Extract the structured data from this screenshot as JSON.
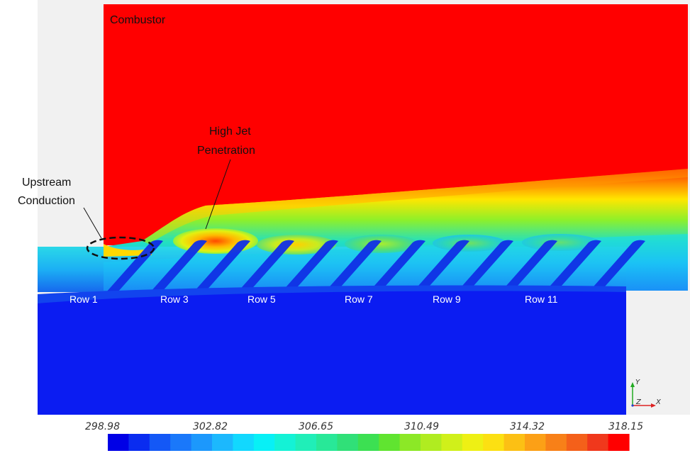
{
  "labels": {
    "combustor": "Combustor",
    "high_jet_line1": "High Jet",
    "high_jet_line2": "Penetration",
    "upstream_line1": "Upstream",
    "upstream_line2": "Conduction"
  },
  "rows": [
    "Row 1",
    "Row 3",
    "Row 5",
    "Row 7",
    "Row 9",
    "Row 11"
  ],
  "colorbar": {
    "ticks": [
      "298.98",
      "302.82",
      "306.65",
      "310.49",
      "314.32",
      "318.15"
    ],
    "colors": [
      "#0000e6",
      "#0a2cf0",
      "#1458f6",
      "#1a78fa",
      "#1c98fc",
      "#1cb8fd",
      "#12d8fe",
      "#08f0f6",
      "#14f2d6",
      "#20eeb8",
      "#28e898",
      "#30e078",
      "#3ce052",
      "#60e430",
      "#8ce826",
      "#b0ec20",
      "#d0f01a",
      "#eef014",
      "#fce012",
      "#fcc014",
      "#fca016",
      "#f88018",
      "#f4601a",
      "#f0381c",
      "#ff0000"
    ]
  },
  "axes": {
    "y": "Y",
    "x": "X",
    "z": "Z"
  },
  "palette": {
    "hot": "#ff0000",
    "cold": "#0000f0",
    "plenum_blue": "#0b1cf2",
    "background_gray": "#f0f0f0"
  }
}
